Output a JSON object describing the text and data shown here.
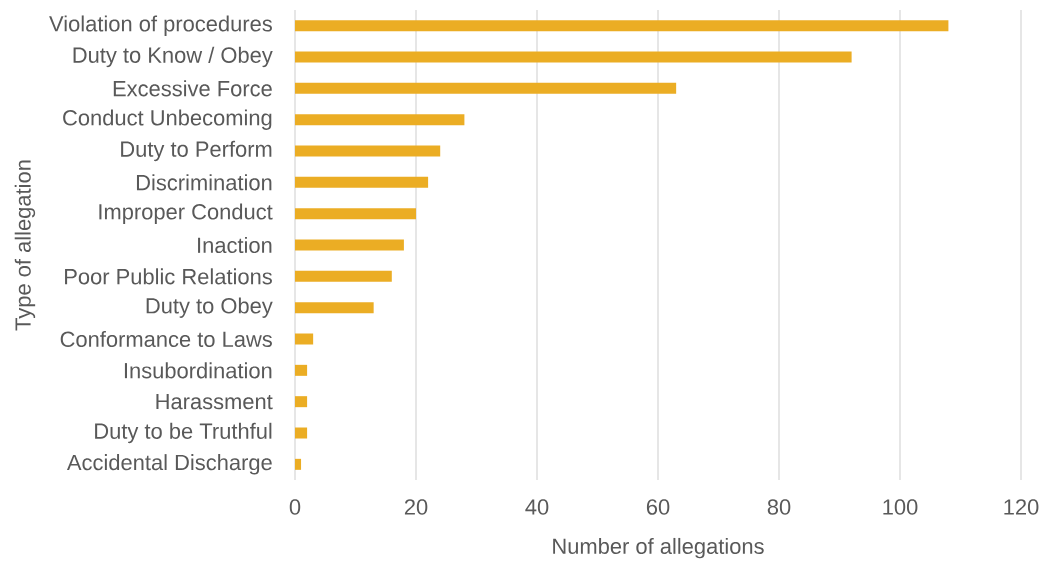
{
  "chart_data": {
    "type": "bar",
    "orientation": "horizontal",
    "xlabel": "Number of allegations",
    "ylabel": "Type of allegation",
    "categories": [
      "Violation of procedures",
      "Duty to Know / Obey",
      "Excessive Force",
      "Conduct Unbecoming",
      "Duty to Perform",
      "Discrimination",
      "Improper Conduct",
      "Inaction",
      "Poor Public Relations",
      "Duty to Obey",
      "Conformance to Laws",
      "Insubordination",
      "Harassment",
      "Duty to be Truthful",
      "Accidental Discharge"
    ],
    "values": [
      108,
      92,
      63,
      28,
      24,
      22,
      20,
      18,
      16,
      13,
      3,
      2,
      2,
      2,
      1
    ],
    "color": "#ebad24",
    "xlim": [
      0,
      120
    ],
    "xticks": [
      0,
      20,
      40,
      60,
      80,
      100,
      120
    ],
    "grid": "x"
  }
}
